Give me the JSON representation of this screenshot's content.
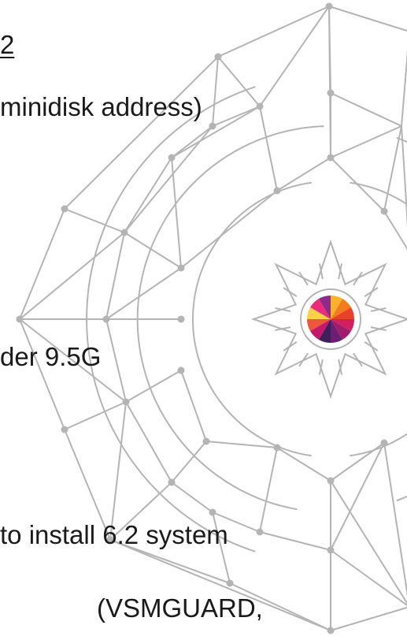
{
  "text_lines": [
    "2",
    "minidisk address)",
    "der 9.5G",
    "to install 6.2 system",
    "(VSMGUARD,"
  ],
  "colors": {
    "line_art": "#b4b4b4",
    "node": "#b4b4b4",
    "text": "#1a1a1a",
    "background": "#ffffff"
  },
  "logo_wheel": {
    "name": "color-wheel-logo",
    "slice_colors": [
      "#f9b02b",
      "#f47b20",
      "#e8412c",
      "#d41f5e",
      "#a11d6b",
      "#6b1e74",
      "#3d1f5b",
      "#c3186c",
      "#f0563c",
      "#fbd04a",
      "#ec2a7a",
      "#8e2a8c"
    ]
  }
}
